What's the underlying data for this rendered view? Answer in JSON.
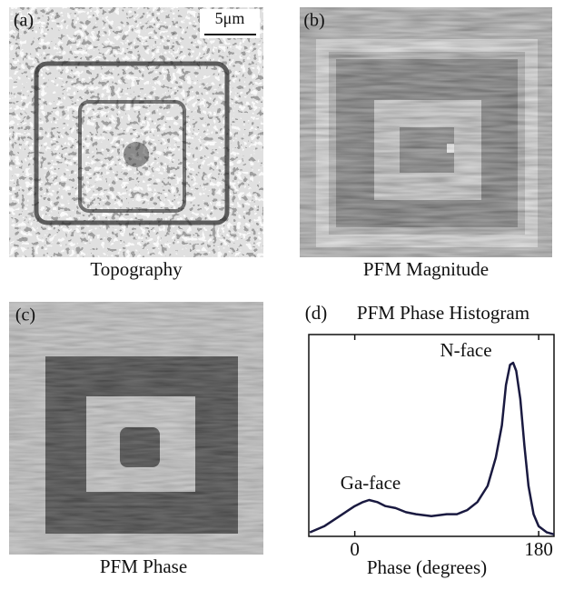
{
  "panels": [
    {
      "label": "(a)",
      "caption": "Topography",
      "scale_bar": "5μm"
    },
    {
      "label": "(b)",
      "caption": "PFM Magnitude"
    },
    {
      "label": "(c)",
      "caption": "PFM Phase"
    }
  ],
  "chart_data": {
    "type": "line",
    "panel_label": "(d)",
    "title": "PFM Phase Histogram",
    "x_label": "Phase (degrees)",
    "annotations": [
      "Ga-face",
      "N-face"
    ],
    "xlim": [
      -45,
      195
    ],
    "xticks": [
      0,
      180
    ],
    "ylim": [
      0,
      100
    ],
    "series": [
      {
        "color": "#1a1a40",
        "x": [
          -44,
          -30,
          -15,
          0,
          8,
          14,
          22,
          30,
          40,
          50,
          60,
          75,
          90,
          100,
          110,
          120,
          130,
          138,
          144,
          148,
          152,
          155,
          158,
          162,
          166,
          170,
          175,
          180,
          188,
          195
        ],
        "values": [
          2,
          5,
          10,
          15,
          17,
          18,
          17,
          15,
          14,
          12,
          11,
          10,
          11,
          11,
          13,
          17,
          25,
          39,
          55,
          75,
          85,
          86,
          82,
          68,
          45,
          25,
          11,
          5,
          2,
          1
        ]
      }
    ]
  }
}
